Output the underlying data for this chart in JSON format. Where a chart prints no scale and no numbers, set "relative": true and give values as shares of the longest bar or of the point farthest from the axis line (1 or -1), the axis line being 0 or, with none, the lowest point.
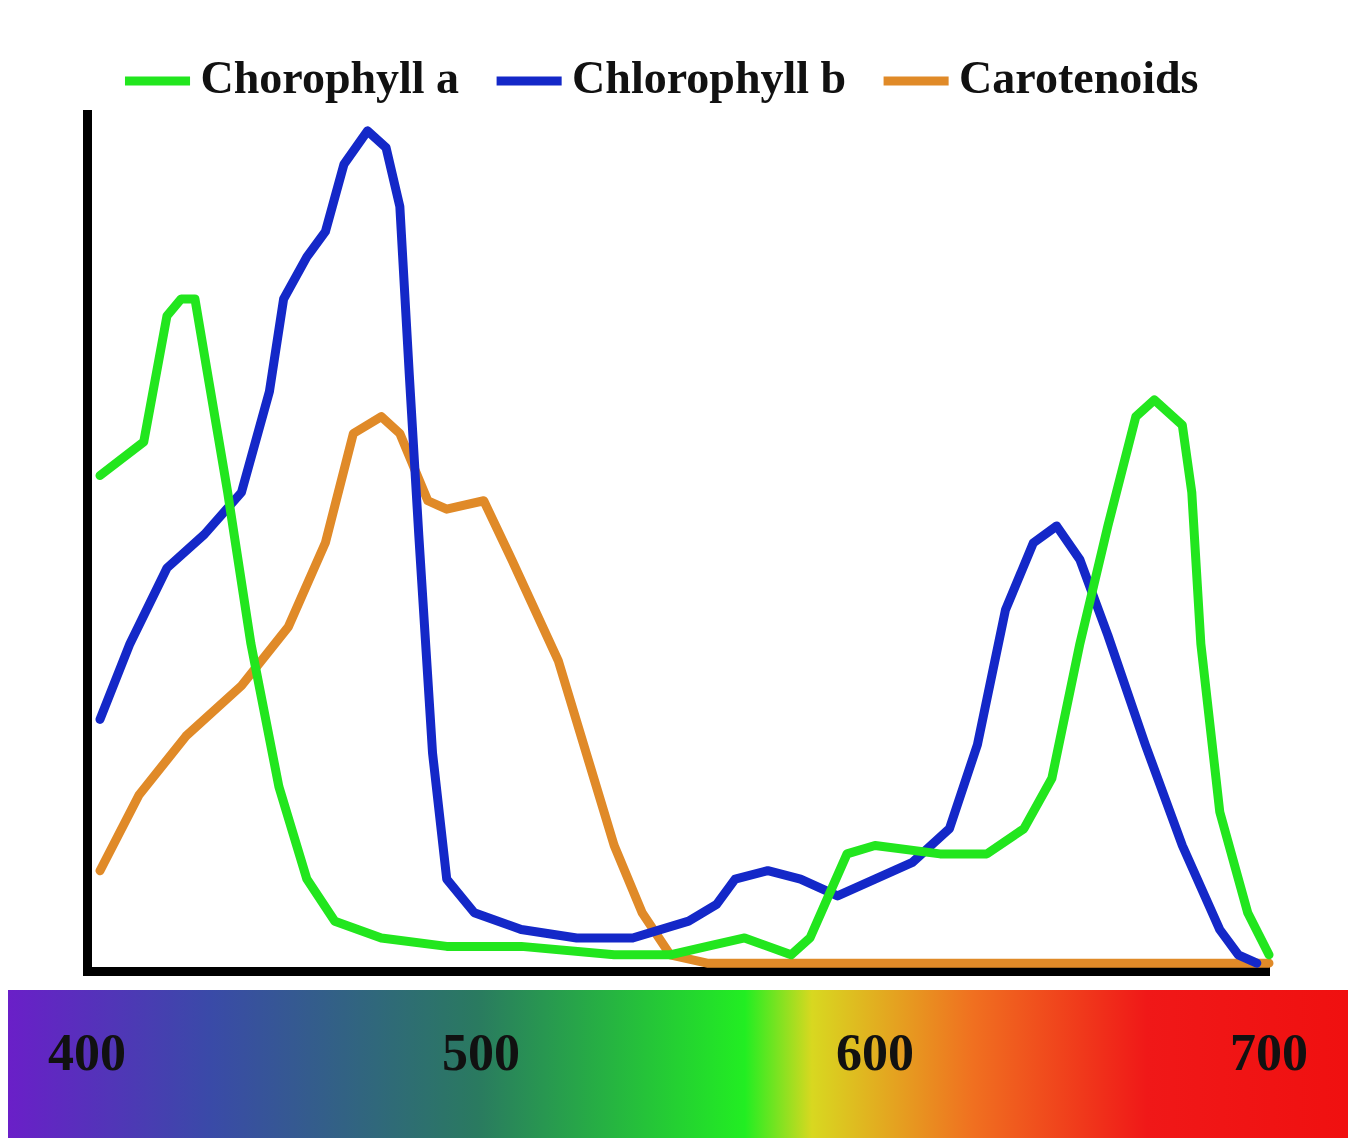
{
  "chart_data": {
    "type": "line",
    "relative": true,
    "xlim": [
      400,
      700
    ],
    "xticks": [
      400,
      500,
      600,
      700
    ],
    "legend": "top",
    "marker": "none",
    "line_style": "solid",
    "tick_labels": "x",
    "series": [
      {
        "name": "Chorophyll a",
        "color": "#22e61e",
        "x": [
          403.3,
          414.4,
          420.3,
          423.9,
          427.4,
          431.0,
          435.7,
          441.6,
          448.7,
          455.8,
          462.9,
          474.7,
          491.3,
          510.2,
          533.8,
          548.0,
          557.4,
          566.9,
          578.7,
          583.5,
          588.2,
          592.9,
          600.0,
          616.5,
          628.4,
          637.8,
          644.9,
          652.0,
          659.1,
          666.2,
          670.9,
          678.0,
          680.4,
          682.7,
          687.5,
          694.6,
          700
        ],
        "values": [
          0.59,
          0.63,
          0.78,
          0.8,
          0.8,
          0.7,
          0.57,
          0.39,
          0.22,
          0.11,
          0.06,
          0.04,
          0.03,
          0.03,
          0.02,
          0.02,
          0.03,
          0.04,
          0.02,
          0.04,
          0.09,
          0.14,
          0.15,
          0.14,
          0.14,
          0.17,
          0.23,
          0.39,
          0.53,
          0.66,
          0.68,
          0.65,
          0.57,
          0.39,
          0.19,
          0.07,
          0.02
        ]
      },
      {
        "name": "Chlorophyll b",
        "color": "#1428c8",
        "x": [
          403.3,
          410.9,
          420.3,
          429.8,
          439.2,
          446.3,
          449.9,
          455.8,
          460.5,
          465.2,
          471.2,
          475.9,
          479.4,
          481.8,
          484.2,
          487.7,
          491.3,
          498.3,
          510.2,
          524.3,
          538.5,
          552.7,
          559.8,
          564.5,
          572.8,
          581.1,
          590.5,
          600.0,
          609.5,
          618.9,
          626.0,
          633.1,
          640.2,
          646.1,
          652.0,
          659.1,
          668.6,
          678.0,
          687.5,
          692.2,
          696.9
        ],
        "values": [
          0.3,
          0.39,
          0.48,
          0.52,
          0.57,
          0.69,
          0.8,
          0.85,
          0.88,
          0.96,
          1,
          0.98,
          0.91,
          0.71,
          0.52,
          0.26,
          0.11,
          0.07,
          0.05,
          0.04,
          0.04,
          0.06,
          0.08,
          0.11,
          0.12,
          0.11,
          0.09,
          0.11,
          0.13,
          0.17,
          0.27,
          0.43,
          0.51,
          0.53,
          0.49,
          0.4,
          0.27,
          0.15,
          0.05,
          0.02,
          0.01
        ]
      },
      {
        "name": "Carotenoids",
        "color": "#e08a28",
        "x": [
          403.3,
          413.2,
          425.1,
          439.2,
          451.1,
          460.5,
          467.6,
          474.7,
          479.4,
          486.5,
          491.3,
          500.7,
          507.8,
          519.6,
          526.7,
          533.8,
          540.9,
          548.0,
          557.4,
          581.1,
          628.4,
          700
        ],
        "values": [
          0.12,
          0.21,
          0.28,
          0.34,
          0.41,
          0.51,
          0.64,
          0.66,
          0.64,
          0.56,
          0.55,
          0.56,
          0.49,
          0.37,
          0.26,
          0.15,
          0.07,
          0.02,
          0.01,
          0.01,
          0.01,
          0.01
        ]
      }
    ]
  }
}
